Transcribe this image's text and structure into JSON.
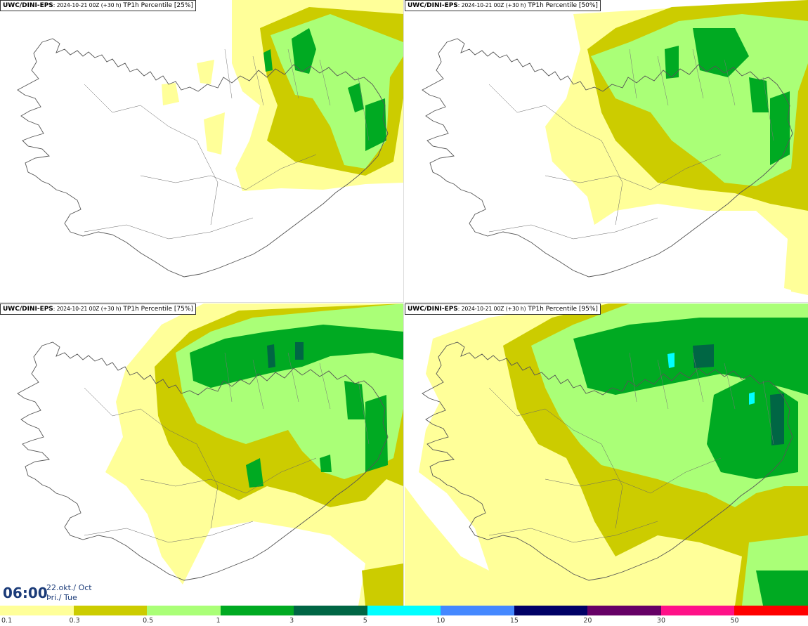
{
  "panels": [
    {
      "model": "UWC/DINI-EPS",
      "meta": ": 2024-10-21 00Z (+30 h)",
      "field": " TP1h Percentile [25%]"
    },
    {
      "model": "UWC/DINI-EPS",
      "meta": ": 2024-10-21 00Z (+30 h)",
      "field": " TP1h Percentile [50%]"
    },
    {
      "model": "UWC/DINI-EPS",
      "meta": ": 2024-10-21 00Z (+30 h)",
      "field": " TP1h Percentile [75%]"
    },
    {
      "model": "UWC/DINI-EPS",
      "meta": ": 2024-10-21 00Z (+30 h)",
      "field": " TP1h Percentile [95%]"
    }
  ],
  "valid_time": {
    "time": "06:00",
    "date_line1": "22.okt./ Oct",
    "date_line2": "Þri./ Tue"
  },
  "legend": {
    "ticks": [
      "0.1",
      "0.3",
      "0.5",
      "1",
      "3",
      "5",
      "10",
      "15",
      "20",
      "30",
      "50"
    ],
    "colors": [
      "#ffff99",
      "#cccc00",
      "#aaff77",
      "#00aa22",
      "#006644",
      "#00ffff",
      "#4488ff",
      "#000066",
      "#660066",
      "#ff1188",
      "#ff0000"
    ]
  },
  "colors": {
    "c01": "#ffff99",
    "c03": "#cccc00",
    "c05": "#aaff77",
    "c1": "#00aa22",
    "c3": "#006644",
    "c5": "#00ffff",
    "coast": "#555555"
  }
}
